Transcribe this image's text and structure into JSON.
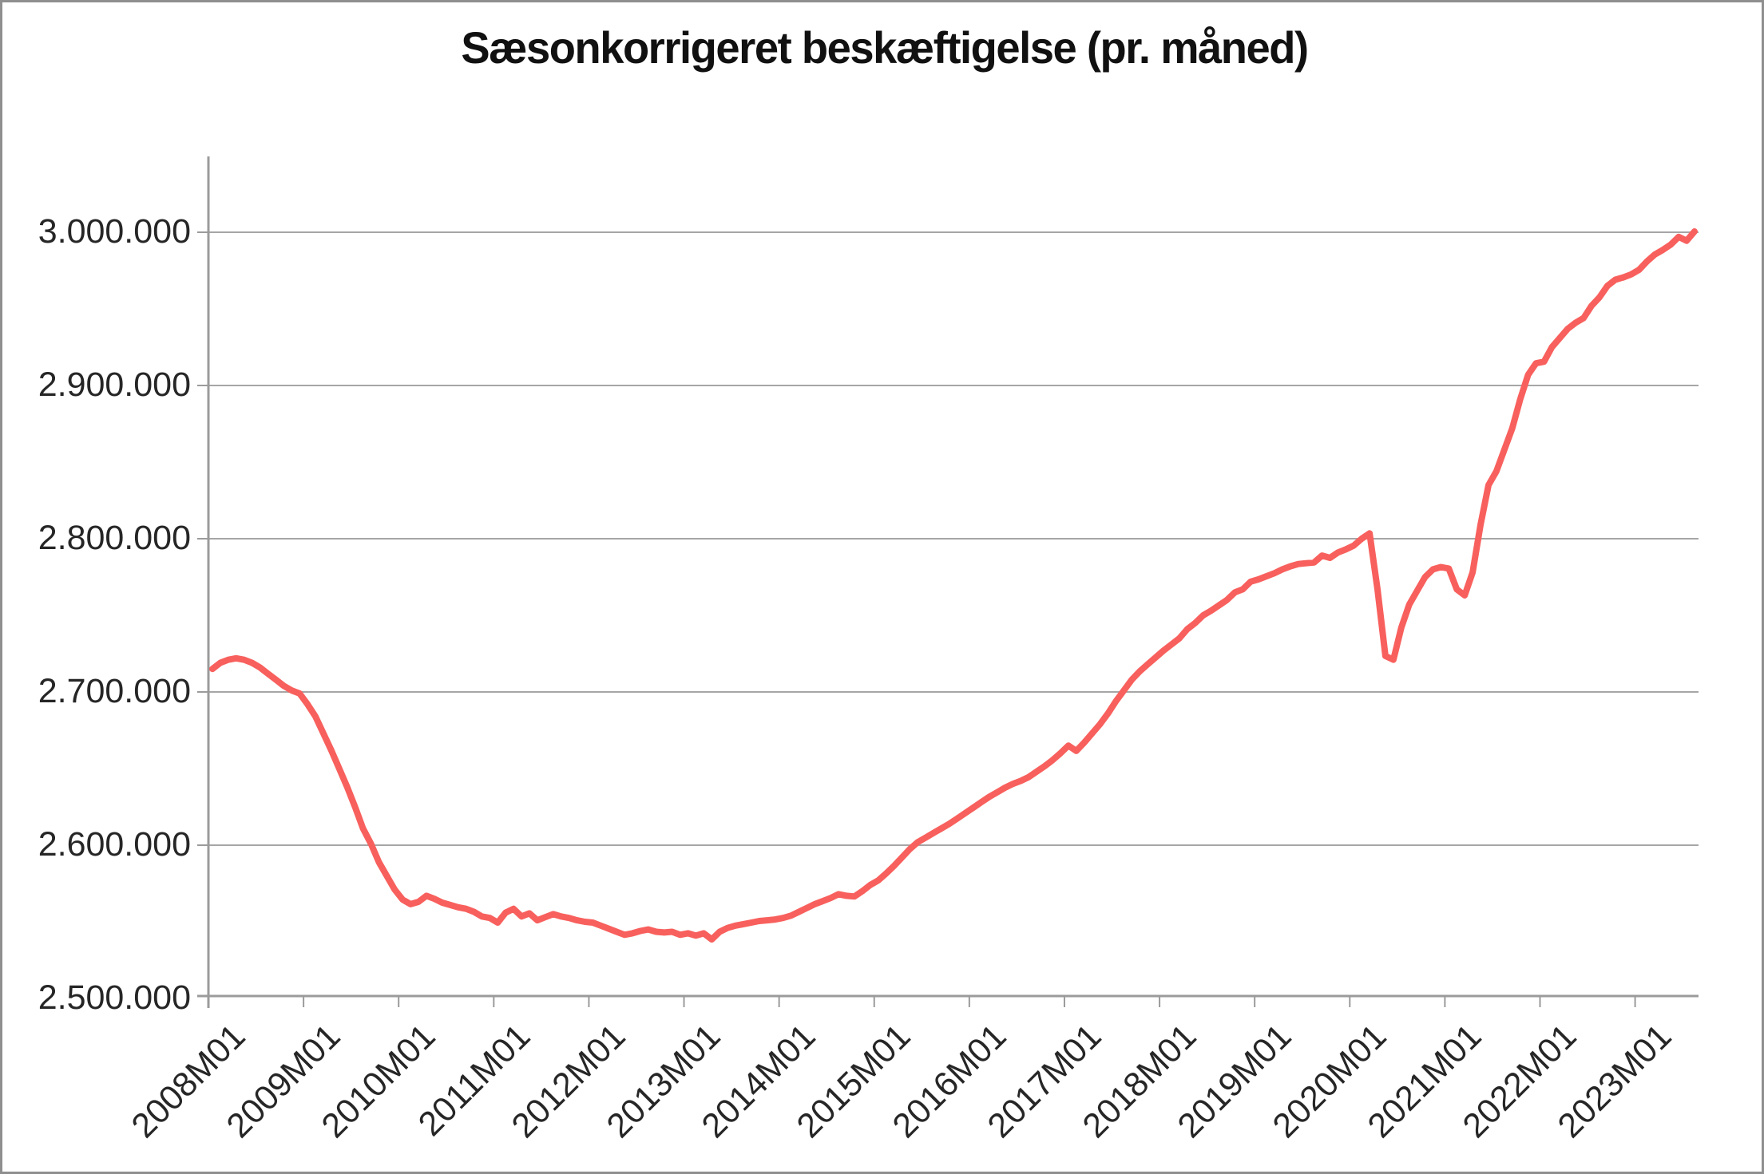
{
  "chart_data": {
    "type": "line",
    "title": "Sæsonkorrigeret beskæftigelse (pr. måned)",
    "xlabel": "",
    "ylabel": "",
    "grid": true,
    "legend_position": "none",
    "y_axis": {
      "min": 2500000,
      "max": 3000000,
      "step": 100000,
      "tick_labels": [
        "3.000.000",
        "2.900.000",
        "2.800.000",
        "2.700.000",
        "2.600.000",
        "2.500.000"
      ]
    },
    "x_axis": {
      "tick_labels": [
        "2008M01",
        "2009M01",
        "2010M01",
        "2011M01",
        "2012M01",
        "2013M01",
        "2014M01",
        "2015M01",
        "2016M01",
        "2017M01",
        "2018M01",
        "2019M01",
        "2020M01",
        "2021M01",
        "2022M01",
        "2023M01"
      ],
      "frequency": "monthly",
      "first_point": "2008M01",
      "last_point": "2023M08"
    },
    "series": [
      {
        "name": "Sæsonkorrigeret beskæftigelse",
        "color": "#F8605D",
        "values": [
          2715000,
          2719000,
          2721000,
          2722000,
          2721000,
          2719000,
          2716000,
          2712000,
          2708000,
          2704000,
          2701000,
          2699000,
          2692000,
          2684000,
          2673000,
          2662000,
          2650000,
          2638000,
          2625000,
          2611000,
          2601000,
          2589000,
          2580000,
          2571000,
          2564500,
          2561500,
          2563000,
          2567000,
          2565000,
          2562500,
          2561000,
          2559500,
          2558500,
          2556500,
          2553500,
          2552500,
          2549500,
          2556000,
          2558500,
          2553500,
          2555500,
          2551000,
          2553000,
          2555000,
          2553500,
          2552500,
          2551000,
          2550000,
          2549500,
          2547500,
          2545500,
          2543500,
          2541500,
          2542500,
          2544000,
          2545000,
          2543500,
          2543000,
          2543500,
          2541500,
          2542500,
          2541000,
          2542500,
          2538500,
          2543500,
          2546000,
          2547500,
          2548500,
          2549500,
          2550500,
          2551000,
          2551500,
          2552500,
          2554000,
          2556500,
          2559000,
          2561500,
          2563500,
          2565500,
          2568000,
          2567000,
          2566500,
          2570000,
          2574000,
          2577000,
          2581500,
          2586500,
          2592000,
          2597500,
          2602000,
          2605000,
          2608000,
          2611000,
          2614000,
          2617500,
          2621000,
          2624500,
          2628000,
          2631500,
          2634500,
          2637500,
          2640000,
          2642000,
          2644500,
          2648000,
          2651500,
          2655500,
          2660000,
          2665000,
          2661500,
          2667000,
          2673000,
          2679000,
          2686000,
          2694000,
          2701000,
          2708000,
          2713500,
          2718000,
          2722500,
          2727000,
          2731000,
          2735000,
          2741000,
          2745000,
          2750000,
          2753000,
          2756500,
          2760000,
          2765000,
          2767000,
          2772000,
          2773500,
          2775500,
          2777500,
          2780000,
          2782000,
          2783500,
          2784000,
          2784500,
          2789000,
          2787500,
          2791000,
          2793000,
          2795500,
          2800000,
          2803500,
          2767000,
          2723500,
          2721000,
          2742000,
          2757000,
          2766000,
          2775000,
          2780000,
          2781500,
          2780500,
          2767000,
          2763000,
          2778000,
          2809000,
          2835000,
          2844000,
          2858000,
          2872000,
          2891000,
          2907000,
          2914500,
          2915500,
          2925000,
          2931000,
          2937000,
          2941000,
          2944000,
          2952000,
          2957500,
          2965000,
          2969000,
          2970500,
          2972500,
          2975500,
          2981000,
          2985500,
          2988500,
          2992000,
          2997000,
          2994500,
          3000500
        ]
      }
    ],
    "colors": {
      "line": "#F8605D",
      "gridline": "#a6a6a6",
      "axis": "#9b9b9b",
      "text": "#262626",
      "frame_border": "#8f8f8f"
    }
  }
}
